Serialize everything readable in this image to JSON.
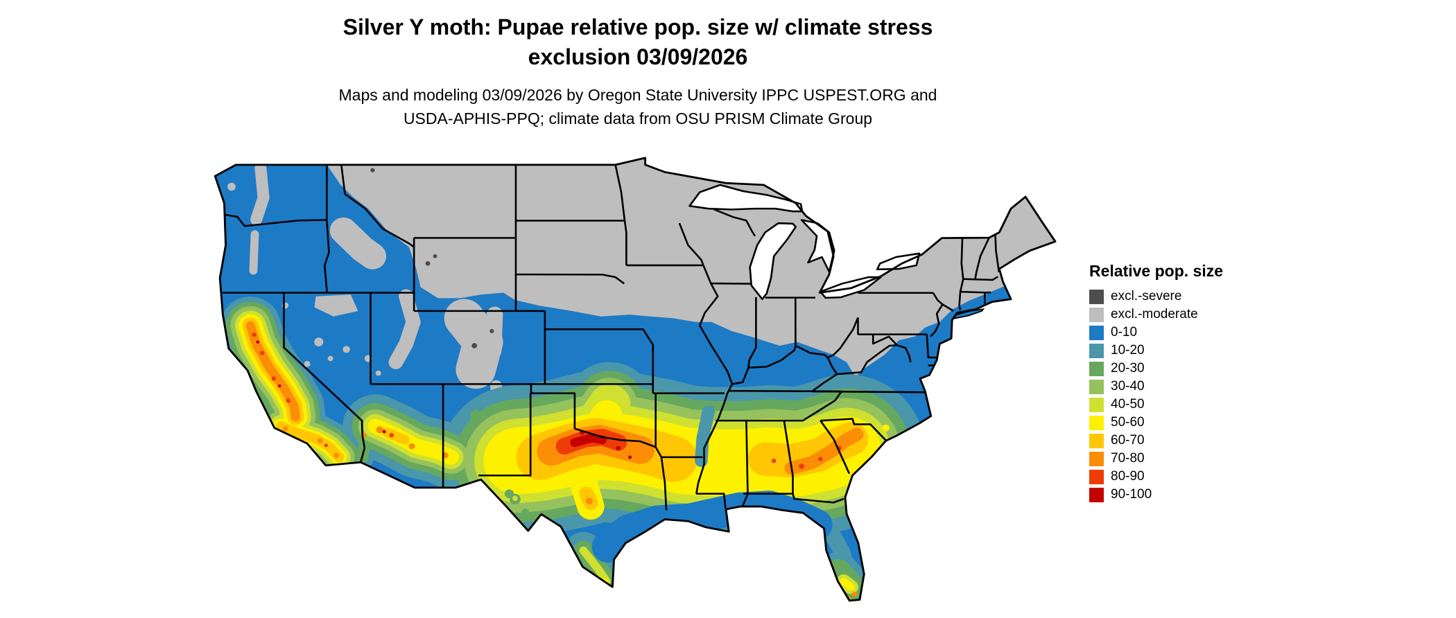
{
  "page": {
    "background": "#ffffff"
  },
  "header": {
    "title_line1": "Silver Y moth: Pupae relative pop. size w/ climate stress",
    "title_line2": "exclusion 03/09/2026",
    "subtitle_line1": "Maps and modeling 03/09/2026 by Oregon State University IPPC USPEST.ORG and",
    "subtitle_line2": "USDA-APHIS-PPQ; climate data from OSU PRISM Climate Group"
  },
  "map": {
    "region": "Contiguous United States",
    "kind": "raster map of relative population size with climate stress exclusion zones"
  },
  "legend": {
    "title": "Relative pop. size",
    "entries": [
      {
        "label": "excl.-severe",
        "color": "#4d4d4d"
      },
      {
        "label": "excl.-moderate",
        "color": "#bebebe"
      },
      {
        "label": "0-10",
        "color": "#1d7ac5"
      },
      {
        "label": "10-20",
        "color": "#4a96ab"
      },
      {
        "label": "20-30",
        "color": "#67a85f"
      },
      {
        "label": "30-40",
        "color": "#95c25c"
      },
      {
        "label": "40-50",
        "color": "#cfe030"
      },
      {
        "label": "50-60",
        "color": "#fdf100"
      },
      {
        "label": "60-70",
        "color": "#ffc603"
      },
      {
        "label": "70-80",
        "color": "#fb8d07"
      },
      {
        "label": "80-90",
        "color": "#ef3c06"
      },
      {
        "label": "90-100",
        "color": "#c40000"
      }
    ]
  }
}
